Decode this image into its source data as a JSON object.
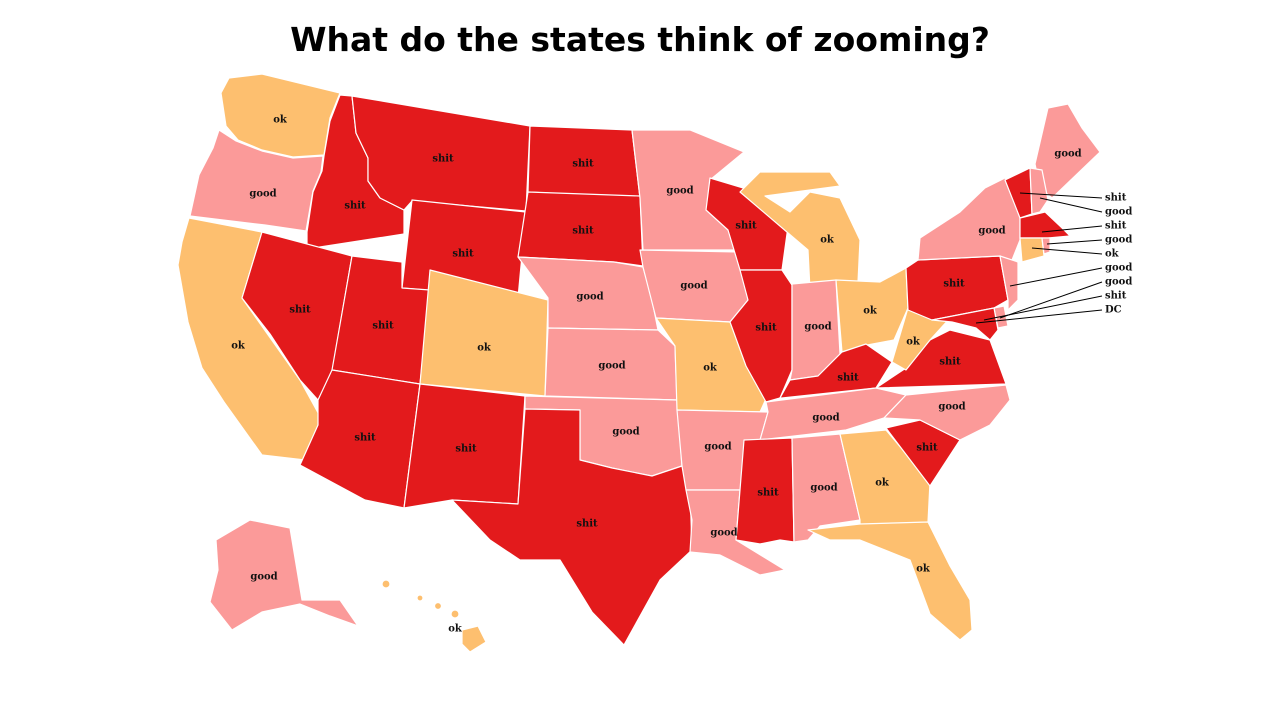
{
  "title": "What do the states think of zooming?",
  "colors": {
    "shit": "#e31a1c",
    "good": "#fb9a99",
    "ok": "#fdbf6f"
  },
  "states": {
    "WA": "ok",
    "OR": "good",
    "CA": "ok",
    "ID": "shit",
    "NV": "shit",
    "MT": "shit",
    "WY": "shit",
    "UT": "shit",
    "AZ": "shit",
    "CO": "ok",
    "NM": "shit",
    "ND": "shit",
    "SD": "shit",
    "NE": "good",
    "KS": "good",
    "OK": "good",
    "TX": "shit",
    "MN": "good",
    "IA": "good",
    "MO": "ok",
    "AR": "good",
    "LA": "good",
    "WI": "shit",
    "IL": "shit",
    "MI": "ok",
    "IN": "good",
    "OH": "ok",
    "KY": "shit",
    "TN": "good",
    "MS": "shit",
    "AL": "good",
    "GA": "ok",
    "FL": "ok",
    "SC": "shit",
    "NC": "good",
    "VA": "shit",
    "WV": "ok",
    "PA": "shit",
    "NY": "good",
    "ME": "good",
    "AK": "good",
    "HI": "ok",
    "VT": "shit",
    "NH": "good",
    "MA": "shit",
    "RI": "good",
    "CT": "ok",
    "NJ": "good",
    "DE": "good",
    "MD": "shit",
    "DC": "DC"
  },
  "callouts": [
    {
      "state": "VT",
      "label": "shit"
    },
    {
      "state": "NH",
      "label": "good"
    },
    {
      "state": "MA",
      "label": "shit"
    },
    {
      "state": "RI",
      "label": "good"
    },
    {
      "state": "CT",
      "label": "ok"
    },
    {
      "state": "NJ",
      "label": "good"
    },
    {
      "state": "DE",
      "label": "good"
    },
    {
      "state": "MD",
      "label": "shit"
    },
    {
      "state": "DC",
      "label": "DC"
    }
  ]
}
